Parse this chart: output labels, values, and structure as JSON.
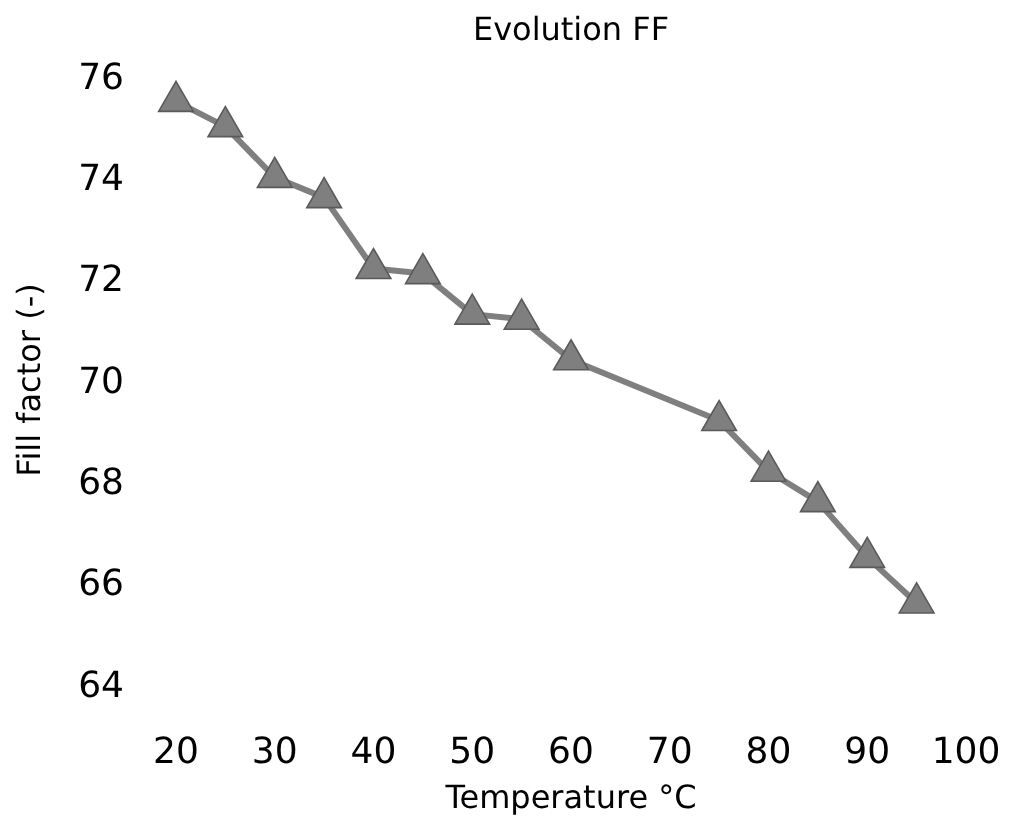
{
  "chart_data": {
    "type": "line",
    "title": "Evolution FF",
    "xlabel": "Temperature °C",
    "ylabel": "Fill factor (-)",
    "x": [
      20,
      25,
      30,
      35,
      40,
      45,
      50,
      55,
      60,
      75,
      80,
      85,
      90,
      95
    ],
    "series": [
      {
        "color": "#7f7f7f",
        "values": [
          75.5,
          75.0,
          74.0,
          73.6,
          72.2,
          72.1,
          71.3,
          71.2,
          70.4,
          69.2,
          68.2,
          67.6,
          66.5,
          65.6
        ]
      }
    ],
    "xlim": [
      20,
      100
    ],
    "xticks": [
      20,
      30,
      40,
      50,
      60,
      70,
      80,
      90,
      100
    ],
    "ylim": [
      64,
      76
    ],
    "yticks": [
      64,
      66,
      68,
      70,
      72,
      74,
      76
    ],
    "marker": "triangle",
    "line_style": "solid",
    "grid": false
  }
}
